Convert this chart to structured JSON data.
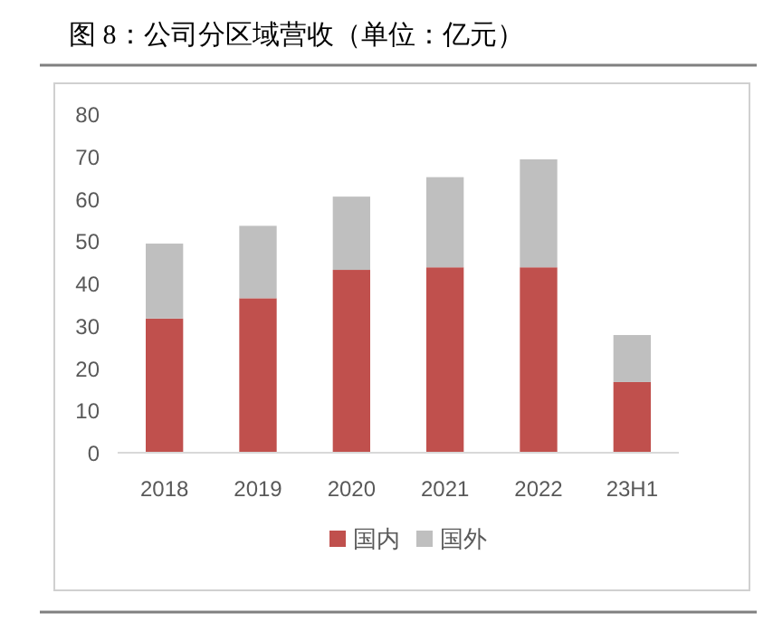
{
  "chart_data": {
    "type": "bar",
    "title": "图 8：公司分区域营收（单位：亿元）",
    "stacked": true,
    "categories": [
      "2018",
      "2019",
      "2020",
      "2021",
      "2022",
      "23H1"
    ],
    "series": [
      {
        "name": "国内",
        "color": "#c0504d",
        "values": [
          31.7,
          36.5,
          43.2,
          43.8,
          43.8,
          16.7
        ]
      },
      {
        "name": "国外",
        "color": "#bfbfbf",
        "values": [
          17.7,
          17.1,
          17.3,
          21.3,
          25.5,
          11.1
        ]
      }
    ],
    "ylim": [
      0,
      80
    ],
    "yticks": [
      0,
      10,
      20,
      30,
      40,
      50,
      60,
      70,
      80
    ],
    "grid": false,
    "legend": "bottom"
  }
}
